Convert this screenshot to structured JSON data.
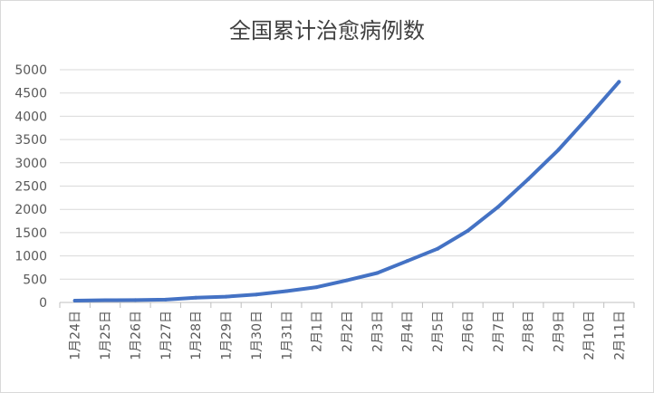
{
  "chart_data": {
    "type": "line",
    "title": "全国累计治愈病例数",
    "categories": [
      "1月24日",
      "1月25日",
      "1月26日",
      "1月27日",
      "1月28日",
      "1月29日",
      "1月30日",
      "1月31日",
      "2月1日",
      "2月2日",
      "2月3日",
      "2月4日",
      "2月5日",
      "2月6日",
      "2月7日",
      "2月8日",
      "2月9日",
      "2月10日",
      "2月11日"
    ],
    "series": [
      {
        "values": [
          38,
          49,
          51,
          60,
          103,
          124,
          171,
          243,
          328,
          475,
          632,
          892,
          1153,
          1540,
          2050,
          2649,
          3281,
          3996,
          4740
        ],
        "color": "#4472C4"
      }
    ],
    "yticks": [
      0,
      500,
      1000,
      1500,
      2000,
      2500,
      3000,
      3500,
      4000,
      4500,
      5000
    ],
    "ylim": [
      0,
      5000
    ],
    "grid": true,
    "legend": "none"
  }
}
